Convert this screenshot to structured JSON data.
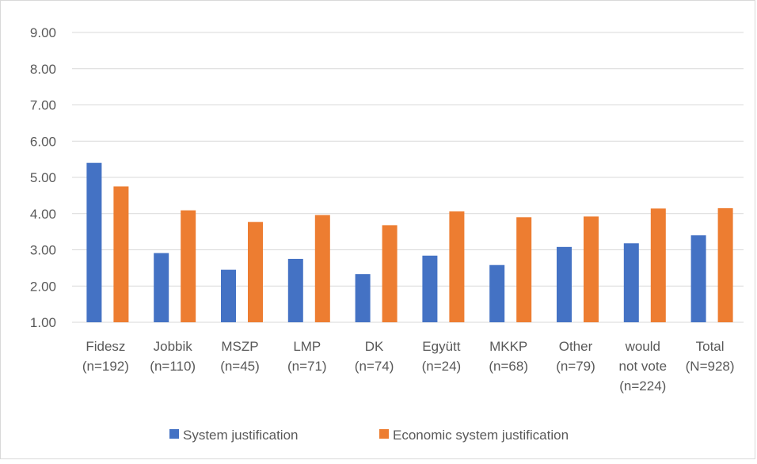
{
  "chart_data": {
    "type": "bar",
    "categories": [
      [
        "Fidesz",
        "(n=192)"
      ],
      [
        "Jobbik",
        "(n=110)"
      ],
      [
        "MSZP",
        "(n=45)"
      ],
      [
        "LMP",
        "(n=71)"
      ],
      [
        "DK",
        "(n=74)"
      ],
      [
        "Együtt",
        "(n=24)"
      ],
      [
        "MKKP",
        "(n=68)"
      ],
      [
        "Other",
        "(n=79)"
      ],
      [
        "would",
        "not vote",
        "(n=224)"
      ],
      [
        "Total",
        "(N=928)"
      ]
    ],
    "series": [
      {
        "name": "System justification",
        "color": "#4472c4",
        "values": [
          5.4,
          2.91,
          2.45,
          2.75,
          2.33,
          2.84,
          2.58,
          3.08,
          3.18,
          3.4
        ]
      },
      {
        "name": "Economic system justification",
        "color": "#ed7d31",
        "values": [
          4.75,
          4.09,
          3.77,
          3.96,
          3.68,
          4.06,
          3.9,
          3.92,
          4.14,
          4.15
        ]
      }
    ],
    "title": "",
    "xlabel": "",
    "ylabel": "",
    "ylim": [
      1,
      9
    ],
    "yticks": [
      "1.00",
      "2.00",
      "3.00",
      "4.00",
      "5.00",
      "6.00",
      "7.00",
      "8.00",
      "9.00"
    ],
    "grid": true,
    "legend_position": "bottom"
  }
}
